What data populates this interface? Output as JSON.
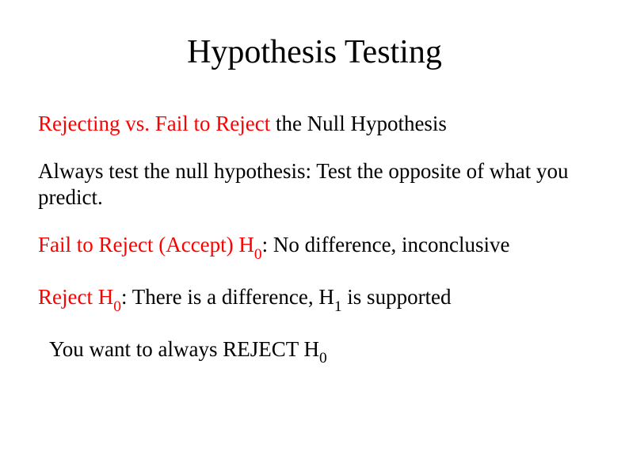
{
  "colors": {
    "background": "#ffffff",
    "text": "#000000",
    "accent": "#ff0000"
  },
  "title": "Hypothesis Testing",
  "line1_red": "Rejecting vs. Fail to Reject",
  "line1_black": " the Null Hypothesis",
  "line2": "Always test the null hypothesis: Test the opposite of what you predict.",
  "line3_red_a": "Fail to Reject (Accept) H",
  "line3_red_sub": "0",
  "line3_black": ":  No difference, inconclusive",
  "line4_red_a": "Reject H",
  "line4_red_sub": "0",
  "line4_black_a": ": There is a difference, H",
  "line4_black_sub": "1",
  "line4_black_b": " is supported",
  "line5_a": "You want to always REJECT H",
  "line5_sub": "0",
  "fontsize_title": 42,
  "fontsize_body": 27
}
